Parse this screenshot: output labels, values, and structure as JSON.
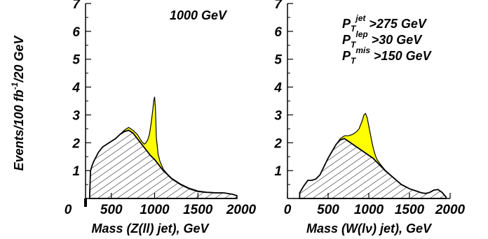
{
  "ylabel": "Events/100 fb",
  "ylabel_sup": "-1",
  "ylabel_suffix": "/20 GeV",
  "chart_data": [
    {
      "type": "area",
      "panel": "left",
      "xlabel": "Mass (Z(ll) jet), GeV",
      "xlim": [
        0,
        2000
      ],
      "ylim": [
        0,
        7
      ],
      "xticks": [
        0,
        500,
        1000,
        1500,
        2000
      ],
      "yticks": [
        1,
        2,
        3,
        4,
        5,
        6,
        7
      ],
      "annotation": "1000 GeV",
      "colors": {
        "signal": "#ffff00",
        "background_hatch": "#000000"
      },
      "series": [
        {
          "role": "background",
          "x": [
            250,
            260,
            280,
            300,
            350,
            400,
            450,
            500,
            550,
            600,
            650,
            700,
            750,
            800,
            850,
            900,
            950,
            1000,
            1050,
            1100,
            1150,
            1200,
            1300,
            1400,
            1500,
            1600,
            1700,
            1800,
            1900,
            1950
          ],
          "values": [
            0.1,
            1.0,
            1.2,
            1.35,
            1.65,
            1.85,
            1.95,
            2.05,
            2.15,
            2.3,
            2.4,
            2.45,
            2.35,
            2.15,
            1.95,
            1.75,
            1.55,
            1.4,
            1.2,
            1.0,
            0.85,
            0.7,
            0.5,
            0.35,
            0.25,
            0.22,
            0.2,
            0.2,
            0.15,
            0.1
          ]
        },
        {
          "role": "signal+background",
          "x": [
            250,
            260,
            280,
            300,
            350,
            400,
            450,
            500,
            550,
            600,
            650,
            700,
            750,
            800,
            850,
            880,
            900,
            920,
            940,
            960,
            980,
            990,
            1000,
            1010,
            1020,
            1040,
            1060,
            1080,
            1100,
            1150,
            1200,
            1300,
            1400,
            1500,
            1600,
            1700,
            1800,
            1900,
            1950
          ],
          "values": [
            0.1,
            1.0,
            1.2,
            1.35,
            1.65,
            1.85,
            1.95,
            2.05,
            2.15,
            2.3,
            2.45,
            2.55,
            2.45,
            2.3,
            2.05,
            1.95,
            2.0,
            2.1,
            2.3,
            2.7,
            3.2,
            3.5,
            3.65,
            3.2,
            2.2,
            1.6,
            1.35,
            1.2,
            1.05,
            0.87,
            0.72,
            0.52,
            0.37,
            0.27,
            0.23,
            0.21,
            0.2,
            0.15,
            0.1
          ]
        }
      ]
    },
    {
      "type": "area",
      "panel": "right",
      "xlabel": "Mass (W(lν) jet), GeV",
      "xlim": [
        0,
        2000
      ],
      "ylim": [
        0,
        7
      ],
      "xticks": [
        0,
        500,
        1000,
        1500,
        2000
      ],
      "yticks": [
        1,
        2,
        3,
        4,
        5,
        6,
        7
      ],
      "annotation_lines": [
        {
          "base": "P",
          "sub": "T",
          "sup": "jet",
          "rest": " >275 GeV"
        },
        {
          "base": "P",
          "sub": "T",
          "sup": "lep",
          "rest": " >30 GeV"
        },
        {
          "base": "P",
          "sub": "T",
          "sup": "mis",
          "rest": " >150 GeV"
        }
      ],
      "colors": {
        "signal": "#ffff00",
        "background_hatch": "#000000"
      },
      "series": [
        {
          "role": "background",
          "x": [
            150,
            200,
            250,
            300,
            350,
            400,
            450,
            500,
            550,
            600,
            650,
            700,
            750,
            800,
            850,
            900,
            950,
            1000,
            1050,
            1100,
            1150,
            1200,
            1300,
            1400,
            1500,
            1600,
            1650,
            1700,
            1750,
            1800,
            1850,
            1900,
            1950
          ],
          "values": [
            0.2,
            0.45,
            0.65,
            0.65,
            0.7,
            0.85,
            1.15,
            1.45,
            1.7,
            1.95,
            2.1,
            2.15,
            2.05,
            1.95,
            1.85,
            1.75,
            1.65,
            1.55,
            1.45,
            1.3,
            1.15,
            1.0,
            0.75,
            0.5,
            0.35,
            0.25,
            0.2,
            0.18,
            0.22,
            0.3,
            0.32,
            0.22,
            0.05
          ]
        },
        {
          "role": "signal+background",
          "x": [
            150,
            200,
            250,
            300,
            350,
            400,
            450,
            500,
            550,
            600,
            650,
            700,
            750,
            800,
            850,
            880,
            900,
            920,
            940,
            960,
            980,
            1000,
            1020,
            1040,
            1060,
            1080,
            1100,
            1150,
            1200,
            1300,
            1400,
            1500,
            1600,
            1650,
            1700,
            1750,
            1800,
            1850,
            1900,
            1950
          ],
          "values": [
            0.2,
            0.45,
            0.65,
            0.65,
            0.7,
            0.85,
            1.15,
            1.45,
            1.7,
            1.95,
            2.15,
            2.25,
            2.25,
            2.3,
            2.4,
            2.5,
            2.65,
            2.8,
            3.0,
            3.05,
            2.9,
            2.6,
            2.3,
            2.0,
            1.75,
            1.55,
            1.4,
            1.2,
            1.02,
            0.76,
            0.51,
            0.35,
            0.25,
            0.2,
            0.18,
            0.22,
            0.3,
            0.32,
            0.22,
            0.05
          ]
        }
      ]
    }
  ]
}
